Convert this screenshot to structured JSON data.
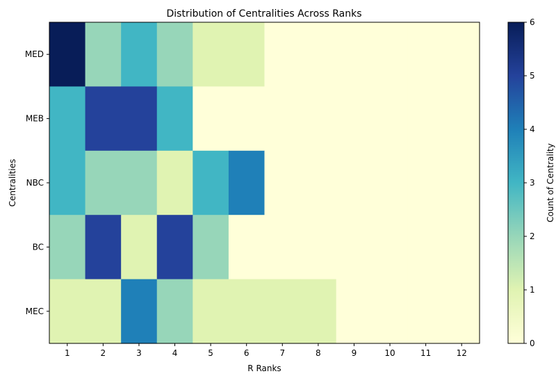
{
  "chart_data": {
    "type": "heatmap",
    "title": "Distribution of Centralities Across Ranks",
    "xlabel": "R Ranks",
    "ylabel": "Centralities",
    "x": [
      "1",
      "2",
      "3",
      "4",
      "5",
      "6",
      "7",
      "8",
      "9",
      "10",
      "11",
      "12"
    ],
    "y": [
      "MED",
      "MEB",
      "NBC",
      "BC",
      "MEC"
    ],
    "values": [
      [
        6,
        2,
        3,
        2,
        1,
        1,
        0,
        0,
        0,
        0,
        0,
        0
      ],
      [
        3,
        5,
        5,
        3,
        0,
        0,
        0,
        0,
        0,
        0,
        0,
        0
      ],
      [
        3,
        2,
        2,
        1,
        3,
        4,
        0,
        0,
        0,
        0,
        0,
        0
      ],
      [
        2,
        5,
        1,
        5,
        2,
        0,
        0,
        0,
        0,
        0,
        0,
        0
      ],
      [
        1,
        1,
        4,
        2,
        1,
        1,
        1,
        1,
        0,
        0,
        0,
        0
      ]
    ],
    "colorbar": {
      "label": "Count of Centrality",
      "range": [
        0,
        6
      ],
      "ticks": [
        "0",
        "1",
        "2",
        "3",
        "4",
        "5",
        "6"
      ],
      "colormap": "YlGnBu",
      "colors": {
        "0": "#ffffd9",
        "1": "#e0f3b2",
        "2": "#97d6b9",
        "3": "#41b6c4",
        "4": "#1f80b8",
        "5": "#24429b",
        "6": "#081d58"
      }
    },
    "grid": false
  }
}
